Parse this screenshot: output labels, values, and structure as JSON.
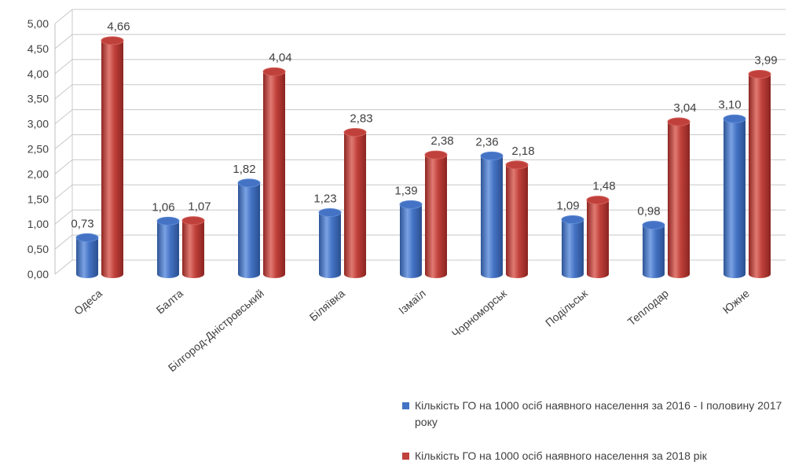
{
  "chart_data": {
    "type": "bar",
    "style": "3d-cylinder",
    "categories": [
      "Одеса",
      "Балта",
      "Білгород-Дністровський",
      "Біляївка",
      "Ізмаїл",
      "Чорноморськ",
      "Подільськ",
      "Теплодар",
      "Южне"
    ],
    "series": [
      {
        "name": "Кількість ГО на 1000 осіб наявного населення за 2016 - І половину 2017 року",
        "color": "#4472c4",
        "values": [
          0.73,
          1.06,
          1.82,
          1.23,
          1.39,
          2.36,
          1.09,
          0.98,
          3.1
        ],
        "labels": [
          "0,73",
          "1,06",
          "1,82",
          "1,23",
          "1,39",
          "2,36",
          "1,09",
          "0,98",
          "3,10"
        ]
      },
      {
        "name": "Кількість ГО на 1000 осіб наявного населення за  2018 рік",
        "color": "#c0403b",
        "values": [
          4.66,
          1.07,
          4.04,
          2.83,
          2.38,
          2.18,
          1.48,
          3.04,
          3.99
        ],
        "labels": [
          "4,66",
          "1,07",
          "4,04",
          "2,83",
          "2,38",
          "2,18",
          "1,48",
          "3,04",
          "3,99"
        ]
      }
    ],
    "ylim": [
      0,
      5
    ],
    "yticks": [
      "0,00",
      "0,50",
      "1,00",
      "1,50",
      "2,00",
      "2,50",
      "3,00",
      "3,50",
      "4,00",
      "4,50",
      "5,00"
    ],
    "grid": true,
    "legend_position": "bottom-right",
    "title": "",
    "xlabel": "",
    "ylabel": ""
  }
}
